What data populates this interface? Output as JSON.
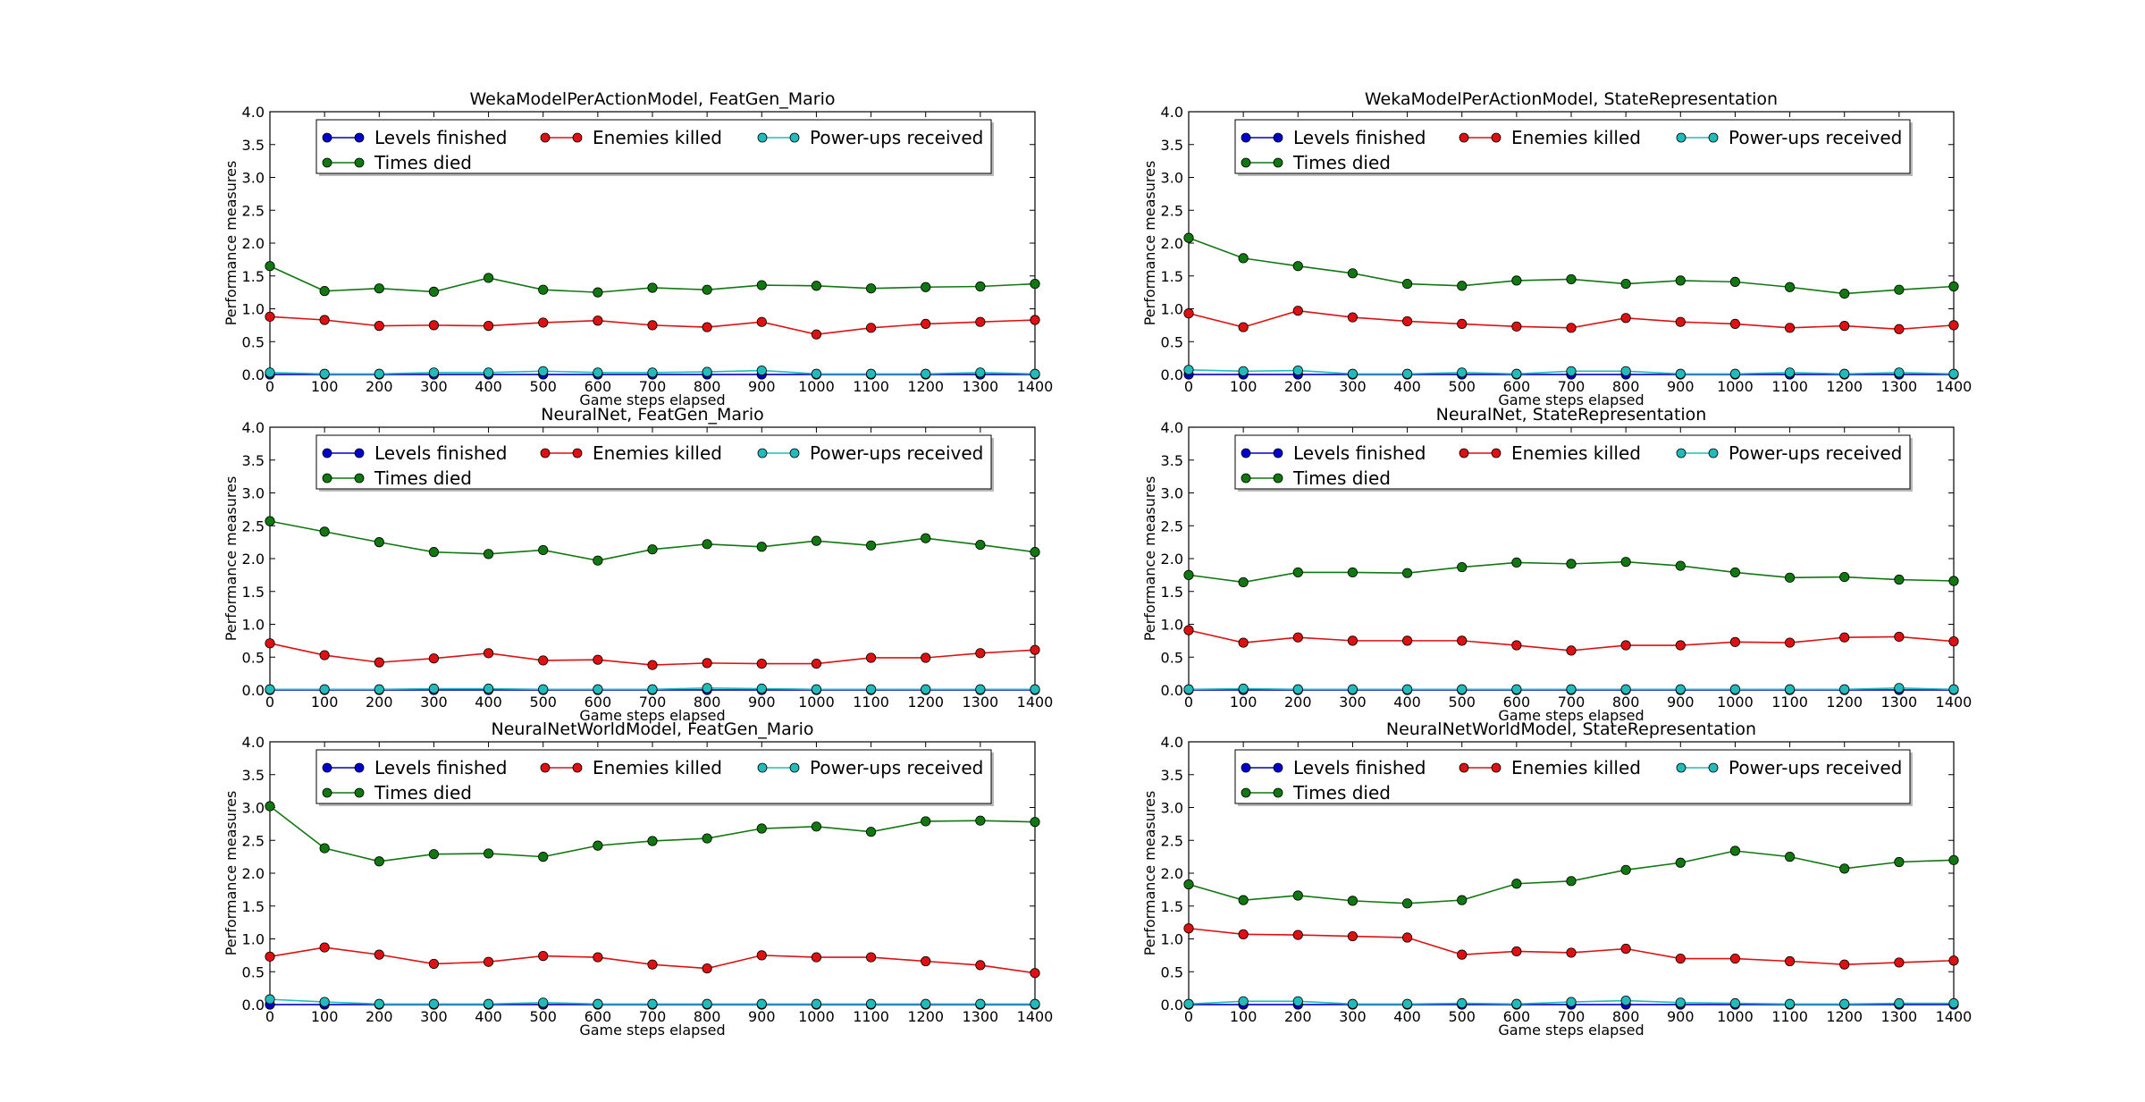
{
  "chart_data": [
    {
      "type": "line",
      "title": "WekaModelPerActionModel, FeatGen_Mario",
      "xlabel": "Game steps elapsed",
      "ylabel": "Performance measures",
      "x": [
        0,
        100,
        200,
        300,
        400,
        500,
        600,
        700,
        800,
        900,
        1000,
        1100,
        1200,
        1300,
        1400
      ],
      "xlim": [
        0,
        1400
      ],
      "ylim": [
        0,
        4.0
      ],
      "xticks": [
        "0",
        "100",
        "200",
        "300",
        "400",
        "500",
        "600",
        "700",
        "800",
        "900",
        "1000",
        "1100",
        "1200",
        "1300",
        "1400"
      ],
      "yticks": [
        "0.0",
        "0.5",
        "1.0",
        "1.5",
        "2.0",
        "2.5",
        "3.0",
        "3.5",
        "4.0"
      ],
      "legend_position": "top",
      "series": [
        {
          "name": "Levels finished",
          "color": "#0000cc",
          "values": [
            0,
            0,
            0,
            0,
            0,
            0,
            0,
            0,
            0,
            0,
            0,
            0,
            0,
            0,
            0
          ]
        },
        {
          "name": "Enemies killed",
          "color": "#dd1111",
          "values": [
            0.88,
            0.83,
            0.74,
            0.75,
            0.74,
            0.79,
            0.82,
            0.75,
            0.72,
            0.8,
            0.61,
            0.71,
            0.77,
            0.8,
            0.83
          ]
        },
        {
          "name": "Power-ups received",
          "color": "#22bbbb",
          "values": [
            0.03,
            0.01,
            0.01,
            0.03,
            0.03,
            0.05,
            0.03,
            0.03,
            0.04,
            0.06,
            0.01,
            0.01,
            0.01,
            0.03,
            0.01
          ]
        },
        {
          "name": "Times died",
          "color": "#117711",
          "values": [
            1.65,
            1.27,
            1.31,
            1.26,
            1.47,
            1.29,
            1.25,
            1.32,
            1.29,
            1.36,
            1.35,
            1.31,
            1.33,
            1.34,
            1.38
          ]
        }
      ]
    },
    {
      "type": "line",
      "title": "WekaModelPerActionModel, StateRepresentation",
      "xlabel": "Game steps elapsed",
      "ylabel": "Performance measures",
      "x": [
        0,
        100,
        200,
        300,
        400,
        500,
        600,
        700,
        800,
        900,
        1000,
        1100,
        1200,
        1300,
        1400
      ],
      "xlim": [
        0,
        1400
      ],
      "ylim": [
        0,
        4.0
      ],
      "xticks": [
        "0",
        "100",
        "200",
        "300",
        "400",
        "500",
        "600",
        "700",
        "800",
        "900",
        "1000",
        "1100",
        "1200",
        "1300",
        "1400"
      ],
      "yticks": [
        "0.0",
        "0.5",
        "1.0",
        "1.5",
        "2.0",
        "2.5",
        "3.0",
        "3.5",
        "4.0"
      ],
      "legend_position": "top",
      "series": [
        {
          "name": "Levels finished",
          "color": "#0000cc",
          "values": [
            0,
            0,
            0,
            0,
            0,
            0,
            0,
            0,
            0,
            0,
            0,
            0,
            0,
            0,
            0
          ]
        },
        {
          "name": "Enemies killed",
          "color": "#dd1111",
          "values": [
            0.93,
            0.72,
            0.97,
            0.87,
            0.81,
            0.77,
            0.73,
            0.71,
            0.86,
            0.8,
            0.77,
            0.71,
            0.74,
            0.69,
            0.75
          ]
        },
        {
          "name": "Power-ups received",
          "color": "#22bbbb",
          "values": [
            0.07,
            0.05,
            0.06,
            0.01,
            0.01,
            0.03,
            0.01,
            0.05,
            0.05,
            0.01,
            0.01,
            0.03,
            0.01,
            0.03,
            0.01
          ]
        },
        {
          "name": "Times died",
          "color": "#117711",
          "values": [
            2.08,
            1.77,
            1.65,
            1.54,
            1.38,
            1.35,
            1.43,
            1.45,
            1.38,
            1.43,
            1.41,
            1.33,
            1.23,
            1.29,
            1.34
          ]
        }
      ]
    },
    {
      "type": "line",
      "title": "NeuralNet, FeatGen_Mario",
      "xlabel": "Game steps elapsed",
      "ylabel": "Performance measures",
      "x": [
        0,
        100,
        200,
        300,
        400,
        500,
        600,
        700,
        800,
        900,
        1000,
        1100,
        1200,
        1300,
        1400
      ],
      "xlim": [
        0,
        1400
      ],
      "ylim": [
        0,
        4.0
      ],
      "xticks": [
        "0",
        "100",
        "200",
        "300",
        "400",
        "500",
        "600",
        "700",
        "800",
        "900",
        "1000",
        "1100",
        "1200",
        "1300",
        "1400"
      ],
      "yticks": [
        "0.0",
        "0.5",
        "1.0",
        "1.5",
        "2.0",
        "2.5",
        "3.0",
        "3.5",
        "4.0"
      ],
      "legend_position": "top",
      "series": [
        {
          "name": "Levels finished",
          "color": "#0000cc",
          "values": [
            0,
            0,
            0,
            0,
            0,
            0,
            0,
            0,
            0,
            0,
            0,
            0,
            0,
            0,
            0
          ]
        },
        {
          "name": "Enemies killed",
          "color": "#dd1111",
          "values": [
            0.71,
            0.53,
            0.42,
            0.48,
            0.56,
            0.45,
            0.46,
            0.38,
            0.41,
            0.4,
            0.4,
            0.49,
            0.49,
            0.56,
            0.61
          ]
        },
        {
          "name": "Power-ups received",
          "color": "#22bbbb",
          "values": [
            0.01,
            0.01,
            0.01,
            0.02,
            0.02,
            0.01,
            0.01,
            0.01,
            0.03,
            0.02,
            0.01,
            0.01,
            0.01,
            0.01,
            0.01
          ]
        },
        {
          "name": "Times died",
          "color": "#117711",
          "values": [
            2.57,
            2.41,
            2.25,
            2.1,
            2.07,
            2.13,
            1.97,
            2.14,
            2.22,
            2.18,
            2.27,
            2.2,
            2.31,
            2.21,
            2.1
          ]
        }
      ]
    },
    {
      "type": "line",
      "title": "NeuralNet, StateRepresentation",
      "xlabel": "Game steps elapsed",
      "ylabel": "Performance measures",
      "x": [
        0,
        100,
        200,
        300,
        400,
        500,
        600,
        700,
        800,
        900,
        1000,
        1100,
        1200,
        1300,
        1400
      ],
      "xlim": [
        0,
        1400
      ],
      "ylim": [
        0,
        4.0
      ],
      "xticks": [
        "0",
        "100",
        "200",
        "300",
        "400",
        "500",
        "600",
        "700",
        "800",
        "900",
        "1000",
        "1100",
        "1200",
        "1300",
        "1400"
      ],
      "yticks": [
        "0.0",
        "0.5",
        "1.0",
        "1.5",
        "2.0",
        "2.5",
        "3.0",
        "3.5",
        "4.0"
      ],
      "legend_position": "top",
      "series": [
        {
          "name": "Levels finished",
          "color": "#0000cc",
          "values": [
            0,
            0,
            0,
            0,
            0,
            0,
            0,
            0,
            0,
            0,
            0,
            0,
            0,
            0,
            0
          ]
        },
        {
          "name": "Enemies killed",
          "color": "#dd1111",
          "values": [
            0.91,
            0.72,
            0.8,
            0.75,
            0.75,
            0.75,
            0.68,
            0.6,
            0.68,
            0.68,
            0.73,
            0.72,
            0.8,
            0.81,
            0.74
          ]
        },
        {
          "name": "Power-ups received",
          "color": "#22bbbb",
          "values": [
            0.01,
            0.02,
            0.01,
            0.01,
            0.01,
            0.01,
            0.01,
            0.01,
            0.01,
            0.01,
            0.01,
            0.01,
            0.01,
            0.03,
            0.01
          ]
        },
        {
          "name": "Times died",
          "color": "#117711",
          "values": [
            1.75,
            1.64,
            1.79,
            1.79,
            1.78,
            1.87,
            1.94,
            1.92,
            1.95,
            1.89,
            1.79,
            1.71,
            1.72,
            1.68,
            1.66
          ]
        }
      ]
    },
    {
      "type": "line",
      "title": "NeuralNetWorldModel, FeatGen_Mario",
      "xlabel": "Game steps elapsed",
      "ylabel": "Performance measures",
      "x": [
        0,
        100,
        200,
        300,
        400,
        500,
        600,
        700,
        800,
        900,
        1000,
        1100,
        1200,
        1300,
        1400
      ],
      "xlim": [
        0,
        1400
      ],
      "ylim": [
        0,
        4.0
      ],
      "xticks": [
        "0",
        "100",
        "200",
        "300",
        "400",
        "500",
        "600",
        "700",
        "800",
        "900",
        "1000",
        "1100",
        "1200",
        "1300",
        "1400"
      ],
      "yticks": [
        "0.0",
        "0.5",
        "1.0",
        "1.5",
        "2.0",
        "2.5",
        "3.0",
        "3.5",
        "4.0"
      ],
      "legend_position": "top",
      "series": [
        {
          "name": "Levels finished",
          "color": "#0000cc",
          "values": [
            0,
            0,
            0,
            0,
            0,
            0,
            0,
            0,
            0,
            0,
            0,
            0,
            0,
            0,
            0
          ]
        },
        {
          "name": "Enemies killed",
          "color": "#dd1111",
          "values": [
            0.73,
            0.87,
            0.76,
            0.62,
            0.65,
            0.74,
            0.72,
            0.61,
            0.55,
            0.75,
            0.72,
            0.72,
            0.66,
            0.6,
            0.48
          ]
        },
        {
          "name": "Power-ups received",
          "color": "#22bbbb",
          "values": [
            0.08,
            0.04,
            0.01,
            0.01,
            0.01,
            0.03,
            0.01,
            0.01,
            0.01,
            0.01,
            0.01,
            0.01,
            0.01,
            0.01,
            0.01
          ]
        },
        {
          "name": "Times died",
          "color": "#117711",
          "values": [
            3.02,
            2.38,
            2.18,
            2.29,
            2.3,
            2.25,
            2.42,
            2.49,
            2.53,
            2.68,
            2.71,
            2.63,
            2.79,
            2.8,
            2.78
          ]
        }
      ]
    },
    {
      "type": "line",
      "title": "NeuralNetWorldModel, StateRepresentation",
      "xlabel": "Game steps elapsed",
      "ylabel": "Performance measures",
      "x": [
        0,
        100,
        200,
        300,
        400,
        500,
        600,
        700,
        800,
        900,
        1000,
        1100,
        1200,
        1300,
        1400
      ],
      "xlim": [
        0,
        1400
      ],
      "ylim": [
        0,
        4.0
      ],
      "xticks": [
        "0",
        "100",
        "200",
        "300",
        "400",
        "500",
        "600",
        "700",
        "800",
        "900",
        "1000",
        "1100",
        "1200",
        "1300",
        "1400"
      ],
      "yticks": [
        "0.0",
        "0.5",
        "1.0",
        "1.5",
        "2.0",
        "2.5",
        "3.0",
        "3.5",
        "4.0"
      ],
      "legend_position": "top",
      "series": [
        {
          "name": "Levels finished",
          "color": "#0000cc",
          "values": [
            0,
            0,
            0,
            0,
            0,
            0,
            0,
            0,
            0,
            0,
            0,
            0,
            0,
            0,
            0
          ]
        },
        {
          "name": "Enemies killed",
          "color": "#dd1111",
          "values": [
            1.16,
            1.07,
            1.06,
            1.04,
            1.02,
            0.76,
            0.81,
            0.79,
            0.85,
            0.7,
            0.7,
            0.66,
            0.61,
            0.64,
            0.67
          ]
        },
        {
          "name": "Power-ups received",
          "color": "#22bbbb",
          "values": [
            0.01,
            0.05,
            0.05,
            0.01,
            0.01,
            0.02,
            0.01,
            0.04,
            0.06,
            0.03,
            0.02,
            0.01,
            0.01,
            0.02,
            0.02
          ]
        },
        {
          "name": "Times died",
          "color": "#117711",
          "values": [
            1.83,
            1.59,
            1.66,
            1.58,
            1.54,
            1.59,
            1.84,
            1.88,
            2.05,
            2.16,
            2.34,
            2.25,
            2.07,
            2.17,
            2.2
          ]
        }
      ]
    }
  ]
}
